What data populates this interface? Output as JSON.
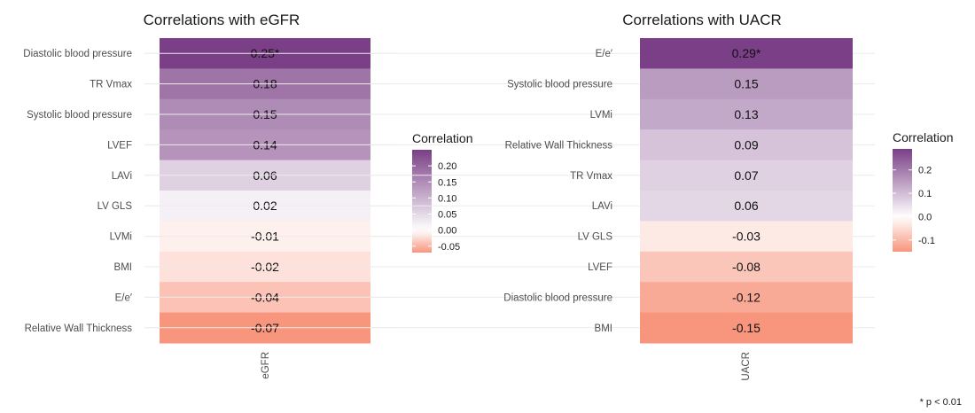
{
  "footnote": "* p < 0.01",
  "colors": {
    "low": "#f8957d",
    "mid": "#ffffff",
    "high": "#7a3f86",
    "gridline": "#ebebeb",
    "text": "#4d4d4d",
    "title": "#1a1a1a",
    "cell_text": "#111111"
  },
  "chart_data": [
    {
      "type": "heatmap",
      "title": "Correlations with eGFR",
      "x_label": "eGFR",
      "legend": {
        "title": "Correlation",
        "placement": "right",
        "ticks": [
          "0.20",
          "0.15",
          "0.10",
          "0.05",
          "0.00",
          "-0.05"
        ],
        "tick_values": [
          0.2,
          0.15,
          0.1,
          0.05,
          0.0,
          -0.05
        ],
        "range": [
          -0.07,
          0.25
        ]
      },
      "rows": [
        {
          "label": "Diastolic blood pressure",
          "value": 0.25,
          "text": "0.25*"
        },
        {
          "label": "TR Vmax",
          "value": 0.18,
          "text": "0.18"
        },
        {
          "label": "Systolic blood pressure",
          "value": 0.15,
          "text": "0.15"
        },
        {
          "label": "LVEF",
          "value": 0.14,
          "text": "0.14"
        },
        {
          "label": "LAVi",
          "value": 0.06,
          "text": "0.06"
        },
        {
          "label": "LV GLS",
          "value": 0.02,
          "text": "0.02"
        },
        {
          "label": "LVMi",
          "value": -0.01,
          "text": "-0.01"
        },
        {
          "label": "BMI",
          "value": -0.02,
          "text": "-0.02"
        },
        {
          "label": "E/e′",
          "value": -0.04,
          "text": "-0.04"
        },
        {
          "label": "Relative Wall Thickness",
          "value": -0.07,
          "text": "-0.07"
        }
      ]
    },
    {
      "type": "heatmap",
      "title": "Correlations with UACR",
      "x_label": "UACR",
      "legend": {
        "title": "Correlation",
        "placement": "right",
        "ticks": [
          "0.2",
          "0.1",
          "0.0",
          "-0.1"
        ],
        "tick_values": [
          0.2,
          0.1,
          0.0,
          -0.1
        ],
        "range": [
          -0.15,
          0.29
        ]
      },
      "rows": [
        {
          "label": "E/e′",
          "value": 0.29,
          "text": "0.29*"
        },
        {
          "label": "Systolic blood pressure",
          "value": 0.15,
          "text": "0.15"
        },
        {
          "label": "LVMi",
          "value": 0.13,
          "text": "0.13"
        },
        {
          "label": "Relative Wall Thickness",
          "value": 0.09,
          "text": "0.09"
        },
        {
          "label": "TR Vmax",
          "value": 0.07,
          "text": "0.07"
        },
        {
          "label": "LAVi",
          "value": 0.06,
          "text": "0.06"
        },
        {
          "label": "LV GLS",
          "value": -0.03,
          "text": "-0.03"
        },
        {
          "label": "LVEF",
          "value": -0.08,
          "text": "-0.08"
        },
        {
          "label": "Diastolic blood pressure",
          "value": -0.12,
          "text": "-0.12"
        },
        {
          "label": "BMI",
          "value": -0.15,
          "text": "-0.15"
        }
      ]
    }
  ]
}
